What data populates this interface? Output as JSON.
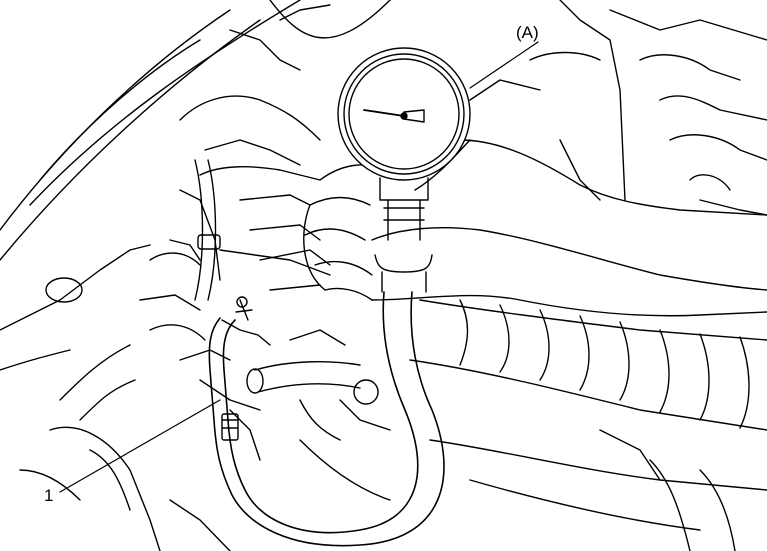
{
  "callouts": {
    "gauge_label": "(A)",
    "hose_label": "1"
  },
  "colors": {
    "line": "#000000",
    "background": "#ffffff",
    "gauge_face": "#ffffff"
  },
  "gauge": {
    "needle_reading_fraction": 0.25
  }
}
